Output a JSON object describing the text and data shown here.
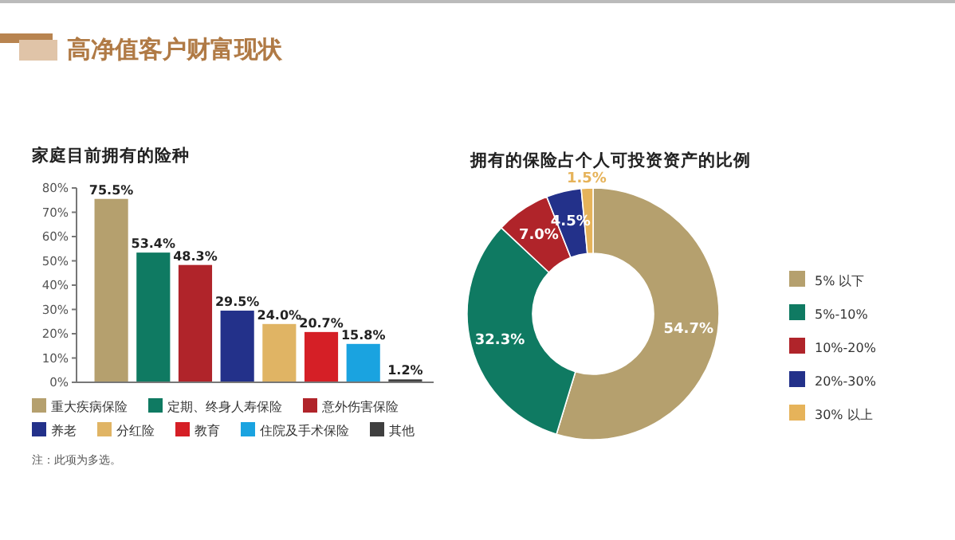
{
  "chart_data": [
    {
      "type": "bar",
      "title": "高净值客户财富现状",
      "subtitle": "家庭目前拥有的险种",
      "categories": [
        null,
        null,
        null,
        null,
        null,
        null,
        null,
        null
      ],
      "stacked": true,
      "series": [
        {
          "name": "重大疾病保险",
          "color": "#b5a06e",
          "values": [
            75.5,
            null,
            null,
            null,
            null,
            null,
            null,
            null
          ],
          "value_labels": [
            "75.5%",
            null,
            null,
            null,
            null,
            null,
            null,
            null
          ]
        },
        {
          "name": "定期、终身人寿保险",
          "color": "#0f7a62",
          "values": [
            null,
            53.4,
            null,
            null,
            null,
            null,
            null,
            null
          ],
          "value_labels": [
            null,
            "53.4%",
            null,
            null,
            null,
            null,
            null,
            null
          ]
        },
        {
          "name": "意外伤害保险",
          "color": "#b0242a",
          "values": [
            null,
            null,
            48.3,
            null,
            null,
            null,
            null,
            null
          ],
          "value_labels": [
            null,
            null,
            "48.3%",
            null,
            null,
            null,
            null,
            null
          ]
        },
        {
          "name": "养老",
          "color": "#23318a",
          "values": [
            null,
            null,
            null,
            29.5,
            null,
            null,
            null,
            null
          ],
          "value_labels": [
            null,
            null,
            null,
            "29.5%",
            null,
            null,
            null,
            null
          ]
        },
        {
          "name": "分红险",
          "color": "#e0b464",
          "values": [
            null,
            null,
            null,
            null,
            24.0,
            null,
            null,
            null
          ],
          "value_labels": [
            null,
            null,
            null,
            null,
            "24.0%",
            null,
            null,
            null
          ]
        },
        {
          "name": "教育",
          "color": "#d51f26",
          "values": [
            null,
            null,
            null,
            null,
            null,
            20.7,
            null,
            null
          ],
          "value_labels": [
            null,
            null,
            null,
            null,
            null,
            "20.7%",
            null,
            null
          ]
        },
        {
          "name": "住院及手术保险",
          "color": "#1aa3e0",
          "values": [
            null,
            null,
            null,
            null,
            null,
            null,
            15.8,
            null
          ],
          "value_labels": [
            null,
            null,
            null,
            null,
            null,
            null,
            "15.8%",
            null
          ]
        },
        {
          "name": "其他",
          "color": "#3f3f3f",
          "values": [
            null,
            null,
            null,
            null,
            null,
            null,
            null,
            1.2
          ],
          "value_labels": [
            null,
            null,
            null,
            null,
            null,
            null,
            null,
            "1.2%"
          ]
        }
      ],
      "ylim": [
        0,
        80
      ],
      "yticks": [
        {
          "value": 0,
          "label": "0%"
        },
        {
          "value": 10,
          "label": "10%"
        },
        {
          "value": 20,
          "label": "20%"
        },
        {
          "value": 30,
          "label": "30%"
        },
        {
          "value": 40,
          "label": "40%"
        },
        {
          "value": 50,
          "label": "50%"
        },
        {
          "value": 60,
          "label": "60%"
        },
        {
          "value": 70,
          "label": "70%"
        },
        {
          "value": 80,
          "label": "80%"
        }
      ],
      "tick_labels": "y",
      "legend": "bottom",
      "annotations": [
        "注：此项为多选。"
      ]
    },
    {
      "type": "donut",
      "title": "拥有的保险占个人可投资资产的比例",
      "categories": [
        "5% 以下",
        "5%-10%",
        "10%-20%",
        "20%-30%",
        "30% 以上"
      ],
      "values": [
        54.7,
        32.3,
        7.0,
        4.5,
        1.5
      ],
      "colors": [
        "#b5a06e",
        "#0f7a62",
        "#b0242a",
        "#23318a",
        "#e6b35a"
      ],
      "value_labels": [
        "54.7%",
        "32.3%",
        "7.0%",
        "4.5%",
        "1.5%"
      ],
      "legend": "right"
    }
  ]
}
